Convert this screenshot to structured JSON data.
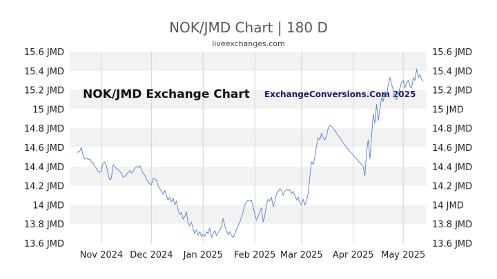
{
  "chart_data": {
    "type": "line",
    "title": "NOK/JMD Chart | 180 D",
    "subtitle": "liveexchanges.com",
    "overlay_title": "NOK/JMD Exchange Chart",
    "watermark": "ExchangeConversions.Com 2025",
    "xlabel": "",
    "ylabel": "",
    "ylim": [
      13.6,
      15.6
    ],
    "xlim": [
      "2024-10-13",
      "2025-05-15"
    ],
    "grid": true,
    "band_colors": [
      "#f2f2f2",
      "#ffffff"
    ],
    "line_color": "#5b8ad6",
    "y_ticks": [
      {
        "value": 13.6,
        "label": "13.6 JMD"
      },
      {
        "value": 13.8,
        "label": "13.8 JMD"
      },
      {
        "value": 14.0,
        "label": "14 JMD"
      },
      {
        "value": 14.2,
        "label": "14.2 JMD"
      },
      {
        "value": 14.4,
        "label": "14.4 JMD"
      },
      {
        "value": 14.6,
        "label": "14.6 JMD"
      },
      {
        "value": 14.8,
        "label": "14.8 JMD"
      },
      {
        "value": 15.0,
        "label": "15 JMD"
      },
      {
        "value": 15.2,
        "label": "15.2 JMD"
      },
      {
        "value": 15.4,
        "label": "15.4 JMD"
      },
      {
        "value": 15.6,
        "label": "15.6 JMD"
      }
    ],
    "x_ticks": [
      {
        "date": "2024-11-01",
        "label": "Nov 2024"
      },
      {
        "date": "2024-12-01",
        "label": "Dec 2024"
      },
      {
        "date": "2025-01-01",
        "label": "Jan 2025"
      },
      {
        "date": "2025-02-01",
        "label": "Feb 2025"
      },
      {
        "date": "2025-03-01",
        "label": "Mar 2025"
      },
      {
        "date": "2025-04-01",
        "label": "Apr 2025"
      },
      {
        "date": "2025-05-01",
        "label": "May 2025"
      }
    ],
    "series": [
      {
        "points": [
          [
            "2024-10-17",
            14.55
          ],
          [
            "2024-10-18",
            14.55
          ],
          [
            "2024-10-19",
            14.56
          ],
          [
            "2024-10-20",
            14.6
          ],
          [
            "2024-10-21",
            14.52
          ],
          [
            "2024-10-22",
            14.48
          ],
          [
            "2024-10-23",
            14.49
          ],
          [
            "2024-10-24",
            14.47
          ],
          [
            "2024-10-25",
            14.48
          ],
          [
            "2024-10-26",
            14.45
          ],
          [
            "2024-10-27",
            14.44
          ],
          [
            "2024-10-28",
            14.4
          ],
          [
            "2024-10-29",
            14.38
          ],
          [
            "2024-10-30",
            14.35
          ],
          [
            "2024-10-31",
            14.34
          ],
          [
            "2024-11-01",
            14.35
          ],
          [
            "2024-11-02",
            14.44
          ],
          [
            "2024-11-03",
            14.45
          ],
          [
            "2024-11-04",
            14.41
          ],
          [
            "2024-11-05",
            14.32
          ],
          [
            "2024-11-06",
            14.26
          ],
          [
            "2024-11-07",
            14.28
          ],
          [
            "2024-11-08",
            14.42
          ],
          [
            "2024-11-09",
            14.4
          ],
          [
            "2024-11-10",
            14.38
          ],
          [
            "2024-11-11",
            14.37
          ],
          [
            "2024-11-12",
            14.35
          ],
          [
            "2024-11-13",
            14.33
          ],
          [
            "2024-11-14",
            14.29
          ],
          [
            "2024-11-15",
            14.3
          ],
          [
            "2024-11-16",
            14.31
          ],
          [
            "2024-11-17",
            14.34
          ],
          [
            "2024-11-18",
            14.36
          ],
          [
            "2024-11-19",
            14.33
          ],
          [
            "2024-11-20",
            14.35
          ],
          [
            "2024-11-21",
            14.38
          ],
          [
            "2024-11-22",
            14.4
          ],
          [
            "2024-11-23",
            14.39
          ],
          [
            "2024-11-24",
            14.41
          ],
          [
            "2024-11-25",
            14.37
          ],
          [
            "2024-11-26",
            14.33
          ],
          [
            "2024-11-27",
            14.31
          ],
          [
            "2024-11-28",
            14.27
          ],
          [
            "2024-11-29",
            14.24
          ],
          [
            "2024-11-30",
            14.22
          ],
          [
            "2024-12-01",
            14.21
          ],
          [
            "2024-12-02",
            14.28
          ],
          [
            "2024-12-03",
            14.27
          ],
          [
            "2024-12-04",
            14.26
          ],
          [
            "2024-12-05",
            14.2
          ],
          [
            "2024-12-06",
            14.17
          ],
          [
            "2024-12-07",
            14.14
          ],
          [
            "2024-12-08",
            14.11
          ],
          [
            "2024-12-09",
            14.15
          ],
          [
            "2024-12-10",
            14.1
          ],
          [
            "2024-12-11",
            14.05
          ],
          [
            "2024-12-12",
            14.08
          ],
          [
            "2024-12-13",
            14.03
          ],
          [
            "2024-12-14",
            14.07
          ],
          [
            "2024-12-15",
            14.0
          ],
          [
            "2024-12-16",
            14.04
          ],
          [
            "2024-12-17",
            13.95
          ],
          [
            "2024-12-18",
            13.9
          ],
          [
            "2024-12-19",
            13.92
          ],
          [
            "2024-12-20",
            13.85
          ],
          [
            "2024-12-21",
            13.88
          ],
          [
            "2024-12-22",
            13.93
          ],
          [
            "2024-12-23",
            13.81
          ],
          [
            "2024-12-24",
            13.78
          ],
          [
            "2024-12-25",
            13.82
          ],
          [
            "2024-12-26",
            13.75
          ],
          [
            "2024-12-27",
            13.7
          ],
          [
            "2024-12-28",
            13.74
          ],
          [
            "2024-12-29",
            13.68
          ],
          [
            "2024-12-30",
            13.72
          ],
          [
            "2024-12-31",
            13.67
          ],
          [
            "2025-01-01",
            13.69
          ],
          [
            "2025-01-02",
            13.67
          ],
          [
            "2025-01-03",
            13.72
          ],
          [
            "2025-01-04",
            13.7
          ],
          [
            "2025-01-05",
            13.76
          ],
          [
            "2025-01-06",
            13.66
          ],
          [
            "2025-01-07",
            13.7
          ],
          [
            "2025-01-08",
            13.73
          ],
          [
            "2025-01-09",
            13.68
          ],
          [
            "2025-01-10",
            13.71
          ],
          [
            "2025-01-11",
            13.74
          ],
          [
            "2025-01-12",
            13.77
          ],
          [
            "2025-01-13",
            13.86
          ],
          [
            "2025-01-14",
            13.78
          ],
          [
            "2025-01-15",
            13.73
          ],
          [
            "2025-01-16",
            13.69
          ],
          [
            "2025-01-17",
            13.72
          ],
          [
            "2025-01-18",
            13.68
          ],
          [
            "2025-01-19",
            13.66
          ],
          [
            "2025-01-20",
            13.7
          ],
          [
            "2025-01-21",
            13.74
          ],
          [
            "2025-01-22",
            13.78
          ],
          [
            "2025-01-23",
            13.82
          ],
          [
            "2025-01-24",
            13.87
          ],
          [
            "2025-01-25",
            13.93
          ],
          [
            "2025-01-26",
            14.0
          ],
          [
            "2025-01-27",
            14.03
          ],
          [
            "2025-01-28",
            14.05
          ],
          [
            "2025-01-29",
            14.04
          ],
          [
            "2025-01-30",
            14.05
          ],
          [
            "2025-01-31",
            13.98
          ],
          [
            "2025-02-01",
            13.9
          ],
          [
            "2025-02-02",
            13.84
          ],
          [
            "2025-02-03",
            13.88
          ],
          [
            "2025-02-04",
            13.93
          ],
          [
            "2025-02-05",
            13.97
          ],
          [
            "2025-02-06",
            13.82
          ],
          [
            "2025-02-07",
            13.89
          ],
          [
            "2025-02-08",
            14.0
          ],
          [
            "2025-02-09",
            14.06
          ],
          [
            "2025-02-10",
            14.04
          ],
          [
            "2025-02-11",
            14.08
          ],
          [
            "2025-02-12",
            13.98
          ],
          [
            "2025-02-13",
            14.03
          ],
          [
            "2025-02-14",
            14.12
          ],
          [
            "2025-02-15",
            14.14
          ],
          [
            "2025-02-16",
            14.17
          ],
          [
            "2025-02-17",
            14.15
          ],
          [
            "2025-02-18",
            14.1
          ],
          [
            "2025-02-19",
            14.14
          ],
          [
            "2025-02-20",
            14.16
          ],
          [
            "2025-02-21",
            14.15
          ],
          [
            "2025-02-22",
            14.16
          ],
          [
            "2025-02-23",
            14.12
          ],
          [
            "2025-02-24",
            14.14
          ],
          [
            "2025-02-25",
            14.1
          ],
          [
            "2025-02-26",
            14.05
          ],
          [
            "2025-02-27",
            14.08
          ],
          [
            "2025-02-28",
            14.02
          ],
          [
            "2025-03-01",
            14.0
          ],
          [
            "2025-03-02",
            14.06
          ],
          [
            "2025-03-03",
            14.0
          ],
          [
            "2025-03-04",
            14.04
          ],
          [
            "2025-03-05",
            14.12
          ],
          [
            "2025-03-06",
            14.3
          ],
          [
            "2025-03-07",
            14.45
          ],
          [
            "2025-03-08",
            14.42
          ],
          [
            "2025-03-09",
            14.5
          ],
          [
            "2025-03-10",
            14.62
          ],
          [
            "2025-03-11",
            14.7
          ],
          [
            "2025-03-12",
            14.68
          ],
          [
            "2025-03-13",
            14.75
          ],
          [
            "2025-03-14",
            14.7
          ],
          [
            "2025-03-15",
            14.68
          ],
          [
            "2025-03-16",
            14.72
          ],
          [
            "2025-03-17",
            14.8
          ],
          [
            "2025-03-18",
            14.83
          ],
          [
            "2025-03-19",
            14.82
          ],
          [
            "2025-03-20",
            14.8
          ],
          [
            "2025-03-28",
            14.6
          ],
          [
            "2025-04-03",
            14.48
          ],
          [
            "2025-04-07",
            14.4
          ],
          [
            "2025-04-08",
            14.3
          ],
          [
            "2025-04-09",
            14.55
          ],
          [
            "2025-04-10",
            14.68
          ],
          [
            "2025-04-11",
            14.48
          ],
          [
            "2025-04-12",
            14.72
          ],
          [
            "2025-04-13",
            14.95
          ],
          [
            "2025-04-14",
            14.85
          ],
          [
            "2025-04-15",
            15.05
          ],
          [
            "2025-04-16",
            14.88
          ],
          [
            "2025-04-17",
            15.0
          ],
          [
            "2025-04-18",
            15.12
          ],
          [
            "2025-04-19",
            15.08
          ],
          [
            "2025-04-20",
            15.18
          ],
          [
            "2025-04-21",
            15.15
          ],
          [
            "2025-04-22",
            15.25
          ],
          [
            "2025-04-23",
            15.33
          ],
          [
            "2025-04-24",
            15.26
          ],
          [
            "2025-04-25",
            15.2
          ],
          [
            "2025-04-26",
            15.12
          ],
          [
            "2025-04-27",
            15.1
          ],
          [
            "2025-04-28",
            15.15
          ],
          [
            "2025-04-29",
            15.22
          ],
          [
            "2025-04-30",
            15.28
          ],
          [
            "2025-05-01",
            15.3
          ],
          [
            "2025-05-02",
            15.22
          ],
          [
            "2025-05-03",
            15.27
          ],
          [
            "2025-05-04",
            15.3
          ],
          [
            "2025-05-05",
            15.24
          ],
          [
            "2025-05-06",
            15.22
          ],
          [
            "2025-05-07",
            15.33
          ],
          [
            "2025-05-08",
            15.3
          ],
          [
            "2025-05-09",
            15.42
          ],
          [
            "2025-05-10",
            15.33
          ],
          [
            "2025-05-11",
            15.36
          ],
          [
            "2025-05-12",
            15.31
          ],
          [
            "2025-05-13",
            15.29
          ]
        ]
      }
    ]
  }
}
